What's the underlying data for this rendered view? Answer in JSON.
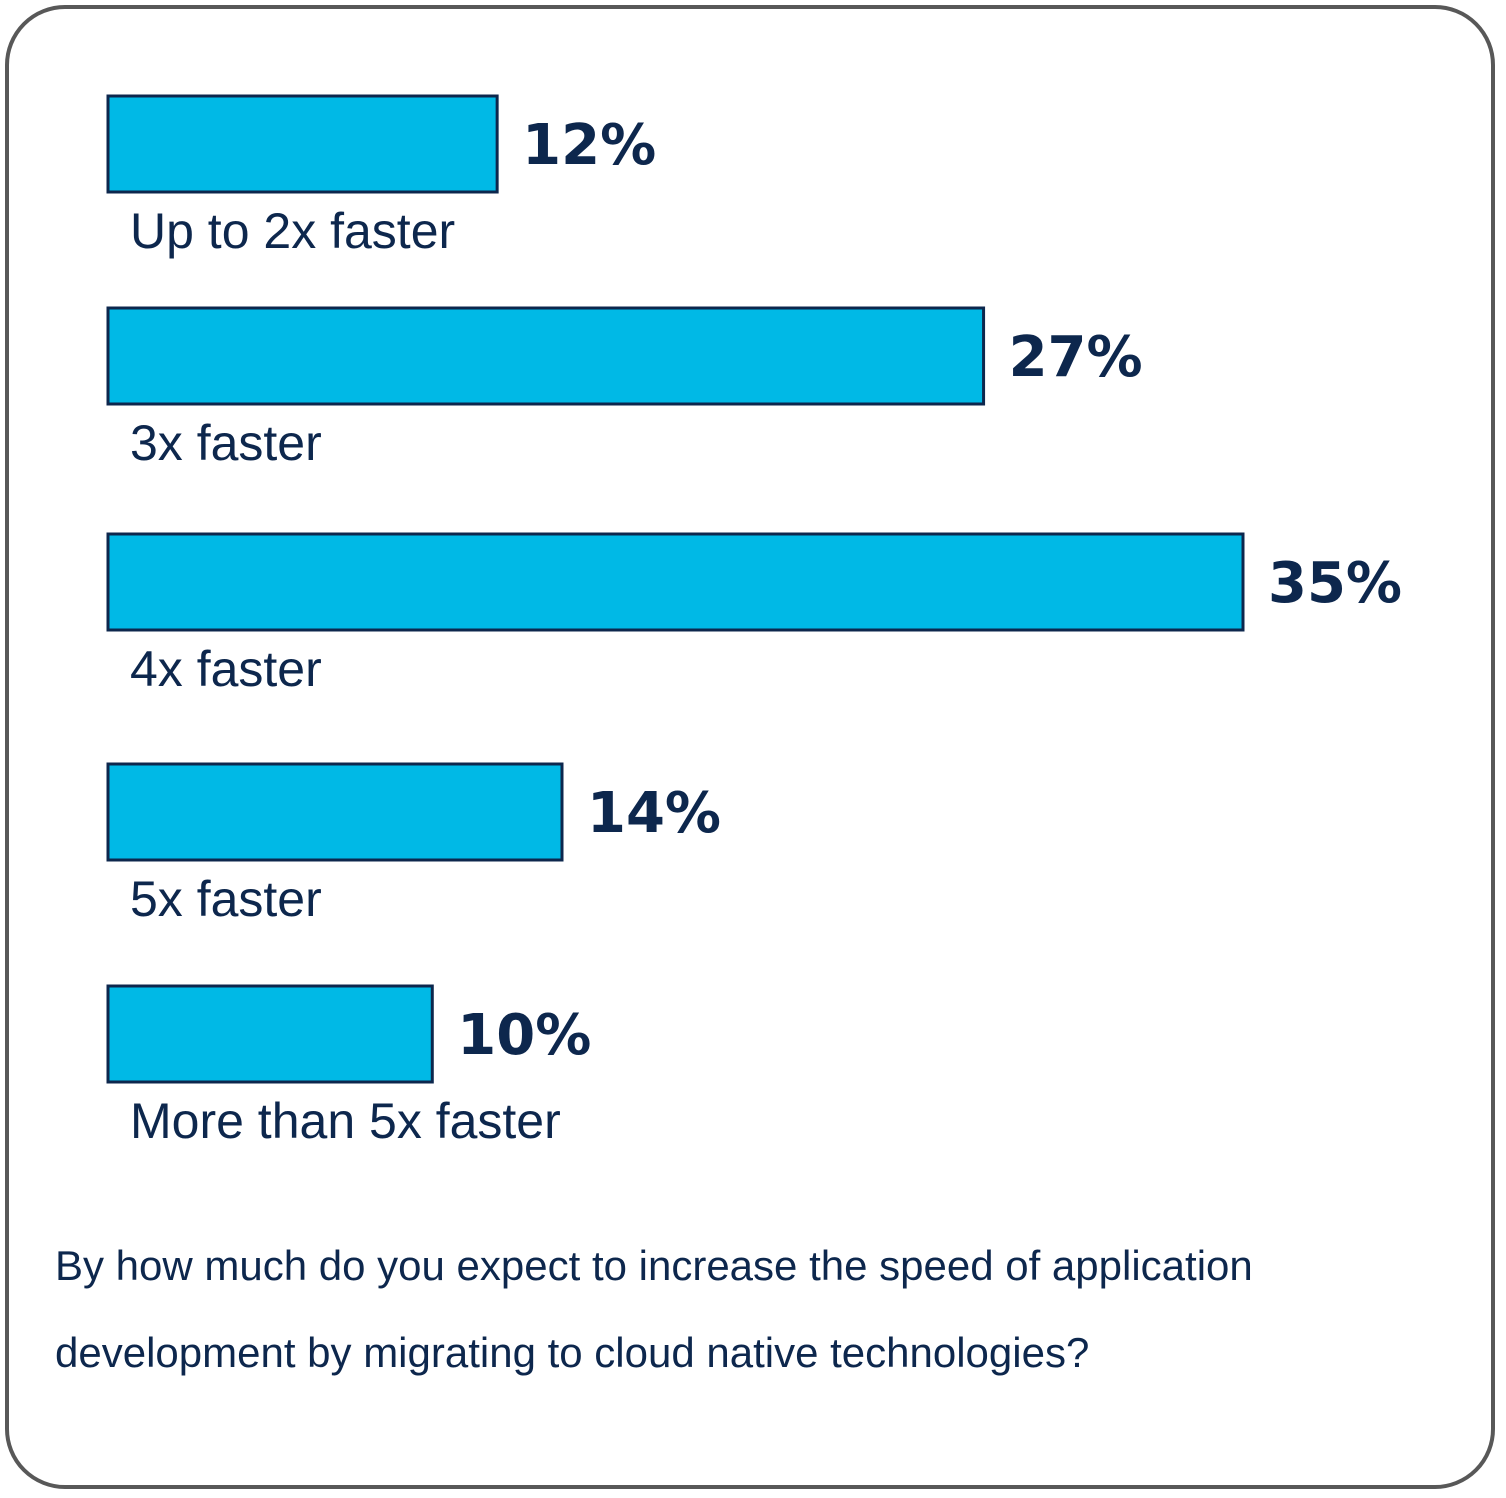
{
  "chart_data": {
    "type": "bar",
    "orientation": "horizontal",
    "categories": [
      "Up to 2x faster",
      "3x faster",
      "4x faster",
      "5x faster",
      "More than 5x faster"
    ],
    "values": [
      12,
      27,
      35,
      14,
      10
    ],
    "value_labels": [
      "12%",
      "27%",
      "35%",
      "14%",
      "10%"
    ],
    "unit": "%",
    "title": "",
    "xlabel": "",
    "ylabel": "",
    "grid": false,
    "legend": "none",
    "bar_color": "#00b9e6",
    "bar_border_color": "#0d274d",
    "text_color": "#0d274d"
  },
  "question": "By how much do you expect to increase the speed of application development by migrating to cloud native technologies?"
}
